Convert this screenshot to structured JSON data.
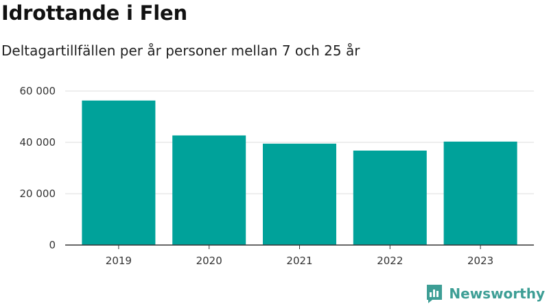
{
  "title": "Idrottande i Flen",
  "subtitle": "Deltagartillfällen per år personer mellan 7 och 25 år",
  "brand": {
    "label": "Newsworthy",
    "icon": "newsworthy-logo-icon",
    "color": "#3d9e95"
  },
  "colors": {
    "bar": "#00a29a",
    "grid": "#dddddd",
    "axis": "#333333"
  },
  "chart_data": {
    "type": "bar",
    "categories": [
      "2019",
      "2020",
      "2021",
      "2022",
      "2023"
    ],
    "values": [
      56300,
      42700,
      39500,
      36800,
      40300
    ],
    "yticks": [
      0,
      20000,
      40000,
      60000
    ],
    "ytick_labels": [
      "0",
      "20 000",
      "40 000",
      "60 000"
    ],
    "ylim": [
      0,
      60000
    ],
    "grid": true,
    "xlabel": "",
    "ylabel": ""
  }
}
